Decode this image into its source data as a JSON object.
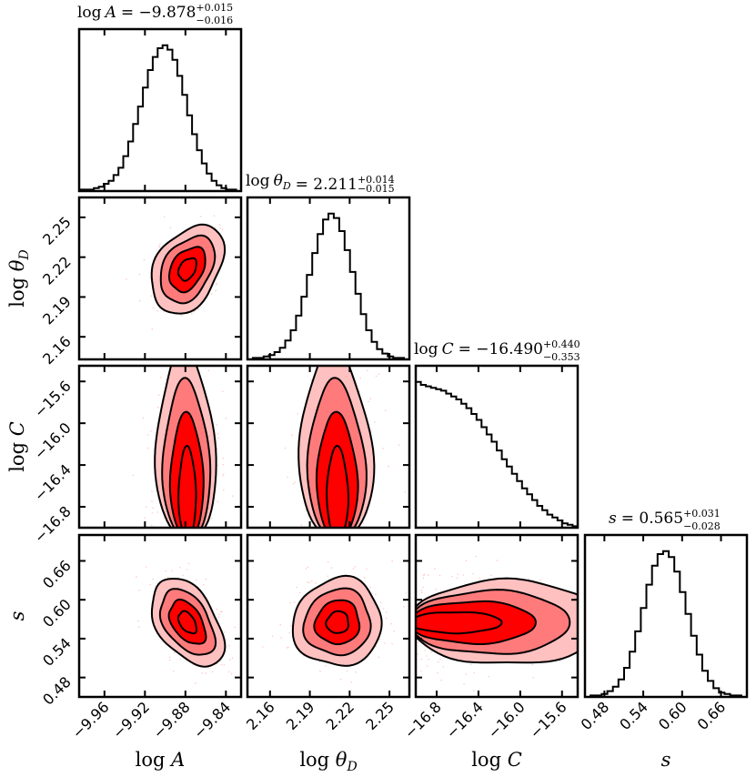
{
  "chart_data": {
    "type": "corner",
    "colors": {
      "level1": "#ff0000",
      "level2": "#ff7b7b",
      "level3": "#ffc0c0",
      "points": "#ffb3b3",
      "line": "#000000"
    },
    "parameters": [
      {
        "id": "logA",
        "label_base": "log",
        "label_var": "A",
        "label_sub": "",
        "title_value": "−9.878",
        "title_plus": "+0.015",
        "title_minus": "−0.016",
        "median": -9.878,
        "sigma": 0.0155,
        "range": [
          -9.985,
          -9.825
        ],
        "ticks": [
          -9.96,
          -9.92,
          -9.88,
          -9.84
        ],
        "tick_labels": [
          "−9.96",
          "−9.92",
          "−9.88",
          "−9.84"
        ]
      },
      {
        "id": "logthetaD",
        "label_base": "log",
        "label_var": "θ",
        "label_sub": "D",
        "title_value": "2.211",
        "title_plus": "+0.014",
        "title_minus": "−0.015",
        "median": 2.211,
        "sigma": 0.0145,
        "range": [
          2.143,
          2.265
        ],
        "ticks": [
          2.16,
          2.19,
          2.22,
          2.25
        ],
        "tick_labels": [
          "2.16",
          "2.19",
          "2.22",
          "2.25"
        ]
      },
      {
        "id": "logC",
        "label_base": "log",
        "label_var": "C",
        "label_sub": "",
        "title_value": "−16.490",
        "title_plus": "+0.440",
        "title_minus": "−0.353",
        "median": -16.49,
        "sigma": 0.4,
        "range": [
          -17.0,
          -15.45
        ],
        "ticks": [
          -16.8,
          -16.4,
          -16.0,
          -15.6
        ],
        "tick_labels": [
          "−16.8",
          "−16.4",
          "−16.0",
          "−15.6"
        ]
      },
      {
        "id": "s",
        "label_base": "",
        "label_var": "s",
        "label_sub": "",
        "title_value": "0.565",
        "title_plus": "+0.031",
        "title_minus": "−0.028",
        "median": 0.565,
        "sigma": 0.0295,
        "range": [
          0.45,
          0.7
        ],
        "ticks": [
          0.48,
          0.54,
          0.6,
          0.66
        ],
        "tick_labels": [
          "0.48",
          "0.54",
          "0.60",
          "0.66"
        ]
      }
    ],
    "histograms": [
      {
        "param": "logA",
        "counts": [
          0.01,
          0.01,
          0.01,
          0.02,
          0.03,
          0.05,
          0.07,
          0.11,
          0.16,
          0.24,
          0.34,
          0.46,
          0.58,
          0.71,
          0.83,
          0.92,
          0.98,
          1.0,
          0.97,
          0.9,
          0.79,
          0.66,
          0.52,
          0.39,
          0.28,
          0.19,
          0.12,
          0.07,
          0.04,
          0.02,
          0.01,
          0.01,
          0.0
        ]
      },
      {
        "param": "logthetaD",
        "counts": [
          0.0,
          0.01,
          0.01,
          0.02,
          0.03,
          0.05,
          0.08,
          0.13,
          0.2,
          0.3,
          0.43,
          0.58,
          0.73,
          0.86,
          0.96,
          1.0,
          0.97,
          0.88,
          0.75,
          0.6,
          0.45,
          0.31,
          0.2,
          0.12,
          0.07,
          0.04,
          0.02,
          0.01,
          0.01,
          0.0
        ]
      },
      {
        "param": "logC",
        "counts": [
          1.0,
          0.98,
          0.97,
          0.96,
          0.95,
          0.94,
          0.92,
          0.9,
          0.88,
          0.85,
          0.82,
          0.78,
          0.74,
          0.69,
          0.64,
          0.59,
          0.53,
          0.47,
          0.42,
          0.37,
          0.32,
          0.27,
          0.23,
          0.19,
          0.15,
          0.12,
          0.09,
          0.07,
          0.05,
          0.03,
          0.02,
          0.01
        ]
      },
      {
        "param": "s",
        "counts": [
          0.0,
          0.01,
          0.01,
          0.02,
          0.04,
          0.07,
          0.12,
          0.2,
          0.31,
          0.45,
          0.61,
          0.77,
          0.9,
          0.98,
          1.0,
          0.96,
          0.86,
          0.72,
          0.57,
          0.42,
          0.29,
          0.18,
          0.11,
          0.06,
          0.03,
          0.02,
          0.01,
          0.01,
          0.0
        ]
      }
    ],
    "contour_panels": [
      {
        "x": "logA",
        "y": "logthetaD",
        "correlation": 0.35,
        "kind": "gaussian"
      },
      {
        "x": "logA",
        "y": "logC",
        "correlation": 0.0,
        "kind": "edge"
      },
      {
        "x": "logthetaD",
        "y": "logC",
        "correlation": 0.0,
        "kind": "edge"
      },
      {
        "x": "logA",
        "y": "s",
        "correlation": -0.45,
        "kind": "gaussian"
      },
      {
        "x": "logthetaD",
        "y": "s",
        "correlation": 0.05,
        "kind": "gaussian"
      },
      {
        "x": "logC",
        "y": "s",
        "correlation": 0.0,
        "kind": "xedge"
      }
    ],
    "contour_levels_sigma": [
      0.5,
      1.0,
      1.5,
      2.0
    ]
  }
}
